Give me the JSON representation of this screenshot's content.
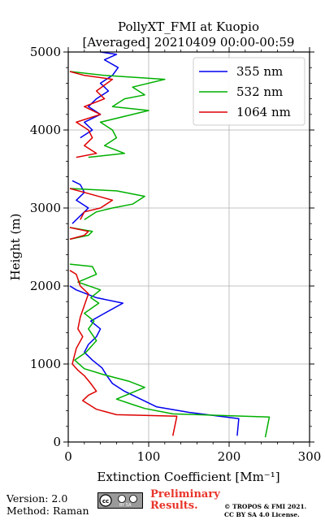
{
  "chart_data": {
    "type": "line",
    "title": "PollyXT_FMI at Kuopio",
    "subtitle": "[Averaged] 20210409 00:00-00:59",
    "xlabel": "Extinction Coefficient [Mm⁻¹]",
    "ylabel": "Height (m)",
    "xlim": [
      0,
      300
    ],
    "ylim": [
      0,
      5000
    ],
    "x_ticks": [
      0,
      100,
      200,
      300
    ],
    "y_ticks": [
      0,
      1000,
      2000,
      3000,
      4000,
      5000
    ],
    "grid": true,
    "legend_position": "top-right",
    "series": [
      {
        "name": "355 nm",
        "color": "#0000ee",
        "segments": [
          [
            [
              210,
              80
            ],
            [
              212,
              300
            ],
            [
              150,
              380
            ],
            [
              110,
              450
            ],
            [
              90,
              550
            ],
            [
              70,
              650
            ],
            [
              55,
              750
            ],
            [
              48,
              850
            ],
            [
              42,
              950
            ],
            [
              30,
              1050
            ],
            [
              20,
              1150
            ],
            [
              25,
              1250
            ],
            [
              35,
              1350
            ],
            [
              40,
              1450
            ],
            [
              28,
              1550
            ],
            [
              45,
              1650
            ],
            [
              68,
              1780
            ],
            [
              35,
              1850
            ],
            [
              10,
              1950
            ],
            [
              2,
              2000
            ]
          ],
          [
            [
              5,
              2800
            ],
            [
              15,
              2900
            ],
            [
              25,
              3000
            ],
            [
              10,
              3100
            ],
            [
              20,
              3200
            ],
            [
              15,
              3300
            ],
            [
              5,
              3350
            ]
          ],
          [
            [
              15,
              3900
            ],
            [
              30,
              4000
            ],
            [
              20,
              4100
            ],
            [
              40,
              4200
            ],
            [
              25,
              4300
            ],
            [
              35,
              4400
            ],
            [
              50,
              4500
            ],
            [
              40,
              4600
            ],
            [
              55,
              4700
            ],
            [
              62,
              4800
            ],
            [
              45,
              4900
            ],
            [
              60,
              4970
            ],
            [
              40,
              5000
            ]
          ]
        ]
      },
      {
        "name": "532 nm",
        "color": "#00b000",
        "segments": [
          [
            [
              245,
              60
            ],
            [
              250,
              320
            ],
            [
              130,
              360
            ],
            [
              95,
              430
            ],
            [
              80,
              480
            ],
            [
              60,
              550
            ],
            [
              95,
              700
            ],
            [
              75,
              780
            ],
            [
              45,
              860
            ],
            [
              20,
              940
            ],
            [
              8,
              1050
            ],
            [
              22,
              1150
            ],
            [
              35,
              1300
            ],
            [
              25,
              1450
            ],
            [
              32,
              1550
            ],
            [
              20,
              1650
            ],
            [
              38,
              1780
            ],
            [
              28,
              1850
            ],
            [
              40,
              1950
            ],
            [
              12,
              2050
            ],
            [
              35,
              2150
            ],
            [
              30,
              2250
            ],
            [
              2,
              2280
            ]
          ],
          [
            [
              2,
              2600
            ],
            [
              25,
              2650
            ],
            [
              30,
              2700
            ],
            [
              2,
              2750
            ]
          ],
          [
            [
              20,
              2850
            ],
            [
              35,
              2950
            ],
            [
              55,
              3000
            ],
            [
              80,
              3050
            ],
            [
              95,
              3150
            ],
            [
              60,
              3220
            ],
            [
              2,
              3250
            ]
          ],
          [
            [
              25,
              3650
            ],
            [
              70,
              3700
            ],
            [
              45,
              3800
            ],
            [
              60,
              3900
            ],
            [
              55,
              4000
            ],
            [
              40,
              4100
            ],
            [
              100,
              4250
            ],
            [
              55,
              4300
            ],
            [
              70,
              4400
            ],
            [
              95,
              4450
            ],
            [
              80,
              4550
            ],
            [
              120,
              4650
            ],
            [
              45,
              4700
            ],
            [
              2,
              4750
            ]
          ]
        ]
      },
      {
        "name": "1064 nm",
        "color": "#dd0000",
        "segments": [
          [
            [
              130,
              80
            ],
            [
              135,
              330
            ],
            [
              60,
              350
            ],
            [
              35,
              420
            ],
            [
              18,
              530
            ],
            [
              25,
              600
            ],
            [
              35,
              650
            ],
            [
              28,
              750
            ],
            [
              20,
              850
            ],
            [
              12,
              920
            ],
            [
              5,
              1000
            ],
            [
              10,
              1200
            ],
            [
              18,
              1350
            ],
            [
              12,
              1450
            ],
            [
              15,
              1600
            ],
            [
              20,
              1750
            ],
            [
              25,
              1900
            ],
            [
              15,
              2000
            ],
            [
              10,
              2150
            ],
            [
              2,
              2200
            ]
          ],
          [
            [
              2,
              2600
            ],
            [
              20,
              2650
            ],
            [
              25,
              2700
            ],
            [
              2,
              2750
            ]
          ],
          [
            [
              15,
              2850
            ],
            [
              20,
              2950
            ],
            [
              40,
              3000
            ],
            [
              55,
              3100
            ],
            [
              20,
              3200
            ],
            [
              2,
              3250
            ]
          ],
          [
            [
              10,
              3650
            ],
            [
              35,
              3700
            ],
            [
              20,
              3800
            ],
            [
              30,
              3900
            ],
            [
              25,
              4000
            ],
            [
              10,
              4100
            ],
            [
              40,
              4200
            ],
            [
              20,
              4300
            ],
            [
              45,
              4400
            ],
            [
              35,
              4500
            ],
            [
              55,
              4650
            ],
            [
              20,
              4700
            ],
            [
              2,
              4750
            ]
          ]
        ]
      }
    ]
  },
  "footer": {
    "version": "Version: 2.0",
    "method": "Method: Raman",
    "license_badge": "BY SA",
    "preliminary_line1": "Preliminary",
    "preliminary_line2": "Results.",
    "copyright_line1": "© TROPOS & FMI 2021.",
    "copyright_line2": "CC BY SA 4.0 License."
  }
}
